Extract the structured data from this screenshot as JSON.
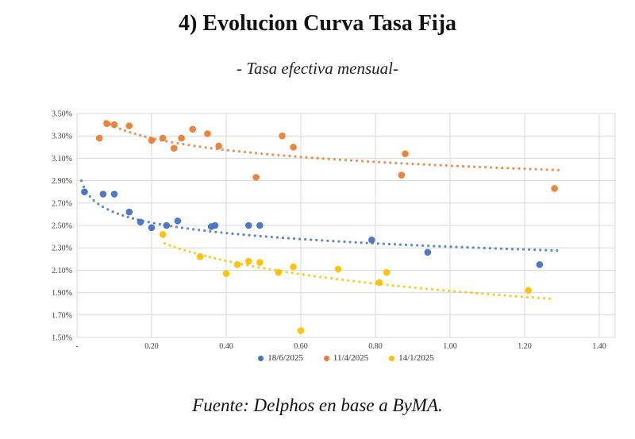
{
  "header": {
    "title": "4) Evolucion Curva Tasa Fija",
    "subtitle": "- Tasa efectiva mensual-"
  },
  "footer": {
    "source": "Fuente: Delphos en base a ByMA."
  },
  "chart_data": {
    "type": "scatter",
    "title": "4) Evolucion Curva Tasa Fija",
    "subtitle": "- Tasa efectiva mensual-",
    "grid": true,
    "legend_position": "bottom",
    "y_axis": {
      "min": 1.5,
      "max": 3.5,
      "step": 0.2,
      "unit": "%",
      "tick_labels": [
        "3.50%",
        "3.30%",
        "3.10%",
        "2.90%",
        "2.70%",
        "2.50%",
        "2.30%",
        "2.10%",
        "1.90%",
        "1.70%",
        "1.50%"
      ]
    },
    "x_axis": {
      "min": 0,
      "max": 1.4,
      "step": 0.2,
      "tick_labels": [
        "-",
        "0.20",
        "0.40",
        "0.60",
        "0.80",
        "1.00",
        "1.20",
        "1.40"
      ]
    },
    "colors": {
      "series1": "#4472C4",
      "series2": "#ED7D31",
      "series3": "#FFC000",
      "gridline": "#d9d9d9",
      "axis_text": "#404040"
    },
    "series": [
      {
        "name": "18/6/2025",
        "color": "#4472C4",
        "points": [
          [
            0.02,
            2.8
          ],
          [
            0.07,
            2.78
          ],
          [
            0.1,
            2.78
          ],
          [
            0.14,
            2.62
          ],
          [
            0.17,
            2.53
          ],
          [
            0.2,
            2.48
          ],
          [
            0.24,
            2.5
          ],
          [
            0.27,
            2.54
          ],
          [
            0.36,
            2.49
          ],
          [
            0.37,
            2.5
          ],
          [
            0.46,
            2.5
          ],
          [
            0.49,
            2.5
          ],
          [
            0.79,
            2.37
          ],
          [
            0.94,
            2.26
          ],
          [
            1.24,
            2.15
          ]
        ],
        "trendline": {
          "type": "log",
          "a": 2.31,
          "b": -0.1334,
          "x_start": 0.012,
          "x_end": 1.3
        }
      },
      {
        "name": "11/4/2025",
        "color": "#ED7D31",
        "points": [
          [
            0.06,
            3.28
          ],
          [
            0.08,
            3.41
          ],
          [
            0.1,
            3.4
          ],
          [
            0.14,
            3.39
          ],
          [
            0.2,
            3.26
          ],
          [
            0.23,
            3.28
          ],
          [
            0.26,
            3.19
          ],
          [
            0.28,
            3.28
          ],
          [
            0.31,
            3.36
          ],
          [
            0.35,
            3.32
          ],
          [
            0.38,
            3.21
          ],
          [
            0.48,
            2.93
          ],
          [
            0.55,
            3.3
          ],
          [
            0.58,
            3.2
          ],
          [
            0.87,
            2.95
          ],
          [
            0.88,
            3.14
          ],
          [
            1.28,
            2.83
          ]
        ],
        "trendline": {
          "type": "log",
          "a": 3.034,
          "b": -0.1528,
          "x_start": 0.075,
          "x_end": 1.3
        }
      },
      {
        "name": "14/1/2025",
        "color": "#FFC000",
        "points": [
          [
            0.23,
            2.42
          ],
          [
            0.33,
            2.22
          ],
          [
            0.4,
            2.07
          ],
          [
            0.43,
            2.15
          ],
          [
            0.46,
            2.18
          ],
          [
            0.49,
            2.17
          ],
          [
            0.54,
            2.08
          ],
          [
            0.58,
            2.13
          ],
          [
            0.6,
            1.56
          ],
          [
            0.7,
            2.11
          ],
          [
            0.81,
            1.99
          ],
          [
            0.83,
            2.08
          ],
          [
            1.21,
            1.92
          ]
        ],
        "trendline": {
          "type": "log",
          "a": 1.915,
          "b": -0.293,
          "x_start": 0.235,
          "x_end": 1.27
        }
      }
    ]
  }
}
